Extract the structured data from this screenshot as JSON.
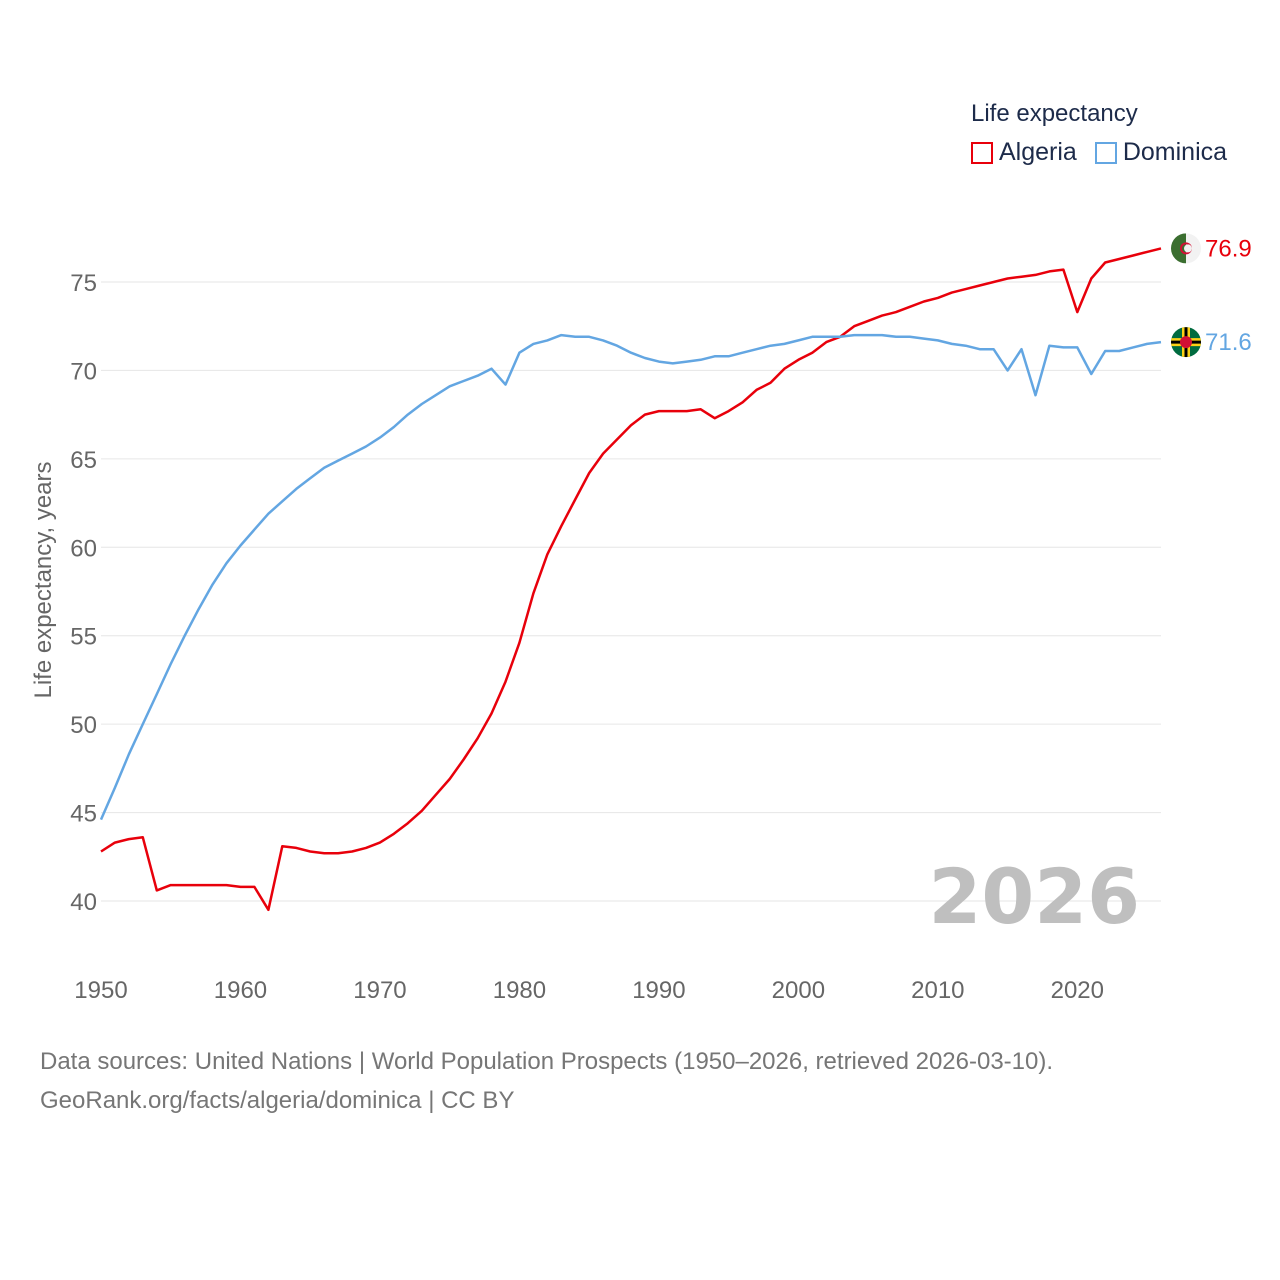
{
  "chart_data": {
    "type": "line",
    "title": "Life expectancy",
    "xlabel": "",
    "ylabel": "Life expectancy, years",
    "xlim": [
      1950,
      2026
    ],
    "ylim": [
      38,
      78
    ],
    "yticks": [
      40,
      45,
      50,
      55,
      60,
      65,
      70,
      75
    ],
    "xticks": [
      1950,
      1960,
      1970,
      1980,
      1990,
      2000,
      2010,
      2020
    ],
    "grid": true,
    "legend_position": "top-right",
    "x": [
      1950,
      1951,
      1952,
      1953,
      1954,
      1955,
      1956,
      1957,
      1958,
      1959,
      1960,
      1961,
      1962,
      1963,
      1964,
      1965,
      1966,
      1967,
      1968,
      1969,
      1970,
      1971,
      1972,
      1973,
      1974,
      1975,
      1976,
      1977,
      1978,
      1979,
      1980,
      1981,
      1982,
      1983,
      1984,
      1985,
      1986,
      1987,
      1988,
      1989,
      1990,
      1991,
      1992,
      1993,
      1994,
      1995,
      1996,
      1997,
      1998,
      1999,
      2000,
      2001,
      2002,
      2003,
      2004,
      2005,
      2006,
      2007,
      2008,
      2009,
      2010,
      2011,
      2012,
      2013,
      2014,
      2015,
      2016,
      2017,
      2018,
      2019,
      2020,
      2021,
      2022,
      2023,
      2024,
      2025,
      2026
    ],
    "series": [
      {
        "name": "Algeria",
        "color": "#e8000b",
        "end_label": "76.9",
        "values": [
          42.8,
          43.3,
          43.5,
          43.6,
          40.6,
          40.9,
          40.9,
          40.9,
          40.9,
          40.9,
          40.8,
          40.8,
          39.5,
          43.1,
          43.0,
          42.8,
          42.7,
          42.7,
          42.8,
          43.0,
          43.3,
          43.8,
          44.4,
          45.1,
          46.0,
          46.9,
          48.0,
          49.2,
          50.6,
          52.4,
          54.6,
          57.4,
          59.6,
          61.2,
          62.7,
          64.2,
          65.3,
          66.1,
          66.9,
          67.5,
          67.7,
          67.7,
          67.7,
          67.8,
          67.3,
          67.7,
          68.2,
          68.9,
          69.3,
          70.1,
          70.6,
          71.0,
          71.6,
          71.9,
          72.5,
          72.8,
          73.1,
          73.3,
          73.6,
          73.9,
          74.1,
          74.4,
          74.6,
          74.8,
          75.0,
          75.2,
          75.3,
          75.4,
          75.6,
          75.7,
          73.3,
          75.2,
          76.1,
          76.3,
          76.5,
          76.7,
          76.9
        ]
      },
      {
        "name": "Dominica",
        "color": "#63a6e2",
        "end_label": "71.6",
        "values": [
          44.6,
          46.4,
          48.3,
          50.0,
          51.7,
          53.4,
          55.0,
          56.5,
          57.9,
          59.1,
          60.1,
          61.0,
          61.9,
          62.6,
          63.3,
          63.9,
          64.5,
          64.9,
          65.3,
          65.7,
          66.2,
          66.8,
          67.5,
          68.1,
          68.6,
          69.1,
          69.4,
          69.7,
          70.1,
          69.2,
          71.0,
          71.5,
          71.7,
          72.0,
          71.9,
          71.9,
          71.7,
          71.4,
          71.0,
          70.7,
          70.5,
          70.4,
          70.5,
          70.6,
          70.8,
          70.8,
          71.0,
          71.2,
          71.4,
          71.5,
          71.7,
          71.9,
          71.9,
          71.9,
          72.0,
          72.0,
          72.0,
          71.9,
          71.9,
          71.8,
          71.7,
          71.5,
          71.4,
          71.2,
          71.2,
          70.0,
          71.2,
          68.6,
          71.4,
          71.3,
          71.3,
          69.8,
          71.1,
          71.1,
          71.3,
          71.5,
          71.6
        ]
      }
    ]
  },
  "legend": {
    "title": "Life expectancy",
    "items": [
      {
        "label": "Algeria",
        "color": "#e8000b"
      },
      {
        "label": "Dominica",
        "color": "#63a6e2"
      }
    ]
  },
  "year_stamp": "2026",
  "footer": {
    "line1": "Data sources: United Nations | World Population Prospects (1950–2026, retrieved 2026-03-10).",
    "line2": "GeoRank.org/facts/algeria/dominica | CC BY"
  },
  "flags": {
    "algeria": "algeria-flag-icon",
    "dominica": "dominica-flag-icon"
  }
}
